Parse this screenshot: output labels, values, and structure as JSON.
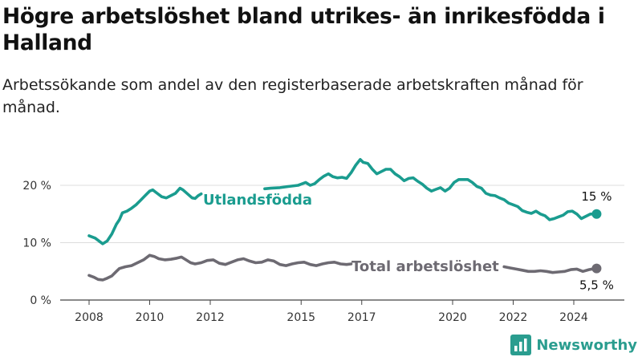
{
  "title": "Högre arbetslöshet bland utrikes- än inrikesfödda i Halland",
  "subtitle": "Arbetssökande som andel av den registerbaserade arbetskraften månad för månad.",
  "brand": {
    "name": "Newsworthy",
    "icon": "bar-chart-icon",
    "color": "#2a9d8f"
  },
  "chart_data": {
    "type": "line",
    "title": "Högre arbetslöshet bland utrikes- än inrikesfödda i Halland",
    "subtitle": "Arbetssökande som andel av den registerbaserade arbetskraften månad för månad.",
    "xlim": [
      2007.9,
      2025
    ],
    "ylim": [
      0,
      27
    ],
    "x_ticks": [
      {
        "value": 2008,
        "label": "2008"
      },
      {
        "value": 2010,
        "label": "2010"
      },
      {
        "value": 2012,
        "label": "2012"
      },
      {
        "value": 2015,
        "label": "2015"
      },
      {
        "value": 2017,
        "label": "2017"
      },
      {
        "value": 2020,
        "label": "2020"
      },
      {
        "value": 2022,
        "label": "2022"
      },
      {
        "value": 2024,
        "label": "2024"
      }
    ],
    "y_ticks": [
      {
        "value": 0,
        "label": "0 %"
      },
      {
        "value": 10,
        "label": "10 %"
      },
      {
        "value": 20,
        "label": "20 %"
      }
    ],
    "grid": true,
    "series": [
      {
        "name": "Utlandsfödda",
        "color": "#1a9c8f",
        "end_label": "15 %",
        "points": [
          [
            2008.0,
            11.2
          ],
          [
            2008.2,
            10.8
          ],
          [
            2008.35,
            10.2
          ],
          [
            2008.45,
            9.8
          ],
          [
            2008.6,
            10.3
          ],
          [
            2008.75,
            11.5
          ],
          [
            2008.9,
            13.2
          ],
          [
            2009.0,
            14.0
          ],
          [
            2009.1,
            15.2
          ],
          [
            2009.25,
            15.5
          ],
          [
            2009.4,
            16.0
          ],
          [
            2009.55,
            16.6
          ],
          [
            2009.7,
            17.4
          ],
          [
            2009.85,
            18.2
          ],
          [
            2010.0,
            19.0
          ],
          [
            2010.1,
            19.2
          ],
          [
            2010.25,
            18.6
          ],
          [
            2010.4,
            18.0
          ],
          [
            2010.55,
            17.8
          ],
          [
            2010.7,
            18.2
          ],
          [
            2010.85,
            18.6
          ],
          [
            2011.0,
            19.5
          ],
          [
            2011.1,
            19.2
          ],
          [
            2011.25,
            18.5
          ],
          [
            2011.4,
            17.8
          ],
          [
            2011.5,
            17.7
          ],
          [
            2011.6,
            18.2
          ],
          [
            2011.7,
            18.5
          ]
        ],
        "points_b": [
          [
            2013.8,
            19.4
          ],
          [
            2014.0,
            19.5
          ],
          [
            2014.3,
            19.6
          ],
          [
            2014.6,
            19.8
          ],
          [
            2014.9,
            20.0
          ],
          [
            2015.0,
            20.2
          ],
          [
            2015.15,
            20.5
          ],
          [
            2015.3,
            20.0
          ],
          [
            2015.45,
            20.3
          ],
          [
            2015.6,
            21.0
          ],
          [
            2015.75,
            21.6
          ],
          [
            2015.9,
            22.0
          ],
          [
            2016.05,
            21.5
          ],
          [
            2016.2,
            21.3
          ],
          [
            2016.35,
            21.4
          ],
          [
            2016.5,
            21.2
          ],
          [
            2016.65,
            22.2
          ],
          [
            2016.8,
            23.5
          ],
          [
            2016.95,
            24.5
          ],
          [
            2017.05,
            24.0
          ],
          [
            2017.2,
            23.8
          ],
          [
            2017.35,
            22.8
          ],
          [
            2017.5,
            22.0
          ],
          [
            2017.65,
            22.4
          ],
          [
            2017.8,
            22.8
          ],
          [
            2017.95,
            22.8
          ],
          [
            2018.1,
            22.0
          ],
          [
            2018.25,
            21.5
          ],
          [
            2018.4,
            20.8
          ],
          [
            2018.55,
            21.2
          ],
          [
            2018.7,
            21.3
          ],
          [
            2018.85,
            20.7
          ],
          [
            2019.0,
            20.2
          ],
          [
            2019.15,
            19.5
          ],
          [
            2019.3,
            19.0
          ],
          [
            2019.45,
            19.3
          ],
          [
            2019.6,
            19.6
          ],
          [
            2019.75,
            19.0
          ],
          [
            2019.9,
            19.5
          ],
          [
            2020.05,
            20.5
          ],
          [
            2020.2,
            21.0
          ],
          [
            2020.35,
            21.0
          ],
          [
            2020.5,
            21.0
          ],
          [
            2020.65,
            20.5
          ],
          [
            2020.8,
            19.8
          ],
          [
            2020.95,
            19.5
          ],
          [
            2021.1,
            18.6
          ],
          [
            2021.25,
            18.3
          ],
          [
            2021.4,
            18.2
          ],
          [
            2021.55,
            17.8
          ],
          [
            2021.7,
            17.5
          ],
          [
            2021.85,
            16.9
          ],
          [
            2022.0,
            16.6
          ],
          [
            2022.15,
            16.3
          ],
          [
            2022.3,
            15.6
          ],
          [
            2022.45,
            15.3
          ],
          [
            2022.6,
            15.1
          ],
          [
            2022.75,
            15.5
          ],
          [
            2022.9,
            15.0
          ],
          [
            2023.05,
            14.7
          ],
          [
            2023.2,
            14.0
          ],
          [
            2023.35,
            14.2
          ],
          [
            2023.5,
            14.5
          ],
          [
            2023.65,
            14.8
          ],
          [
            2023.8,
            15.4
          ],
          [
            2023.95,
            15.5
          ],
          [
            2024.1,
            15.0
          ],
          [
            2024.25,
            14.2
          ],
          [
            2024.4,
            14.6
          ],
          [
            2024.55,
            15.0
          ],
          [
            2024.7,
            15.0
          ]
        ]
      },
      {
        "name": "Total arbetslöshet",
        "color": "#6d6a72",
        "end_label": "5,5 %",
        "points": [
          [
            2008.0,
            4.3
          ],
          [
            2008.15,
            4.0
          ],
          [
            2008.3,
            3.6
          ],
          [
            2008.45,
            3.5
          ],
          [
            2008.6,
            3.8
          ],
          [
            2008.75,
            4.2
          ],
          [
            2008.9,
            5.0
          ],
          [
            2009.0,
            5.5
          ],
          [
            2009.2,
            5.8
          ],
          [
            2009.4,
            6.0
          ],
          [
            2009.6,
            6.5
          ],
          [
            2009.8,
            7.0
          ],
          [
            2010.0,
            7.8
          ],
          [
            2010.15,
            7.6
          ],
          [
            2010.3,
            7.2
          ],
          [
            2010.5,
            7.0
          ],
          [
            2010.7,
            7.1
          ],
          [
            2010.9,
            7.3
          ],
          [
            2011.05,
            7.5
          ],
          [
            2011.2,
            7.0
          ],
          [
            2011.35,
            6.5
          ],
          [
            2011.5,
            6.3
          ],
          [
            2011.7,
            6.5
          ],
          [
            2011.9,
            6.9
          ],
          [
            2012.1,
            7.0
          ],
          [
            2012.3,
            6.4
          ],
          [
            2012.5,
            6.2
          ],
          [
            2012.7,
            6.6
          ],
          [
            2012.9,
            7.0
          ],
          [
            2013.1,
            7.2
          ],
          [
            2013.3,
            6.8
          ],
          [
            2013.5,
            6.5
          ],
          [
            2013.7,
            6.6
          ],
          [
            2013.9,
            7.0
          ],
          [
            2014.1,
            6.8
          ],
          [
            2014.3,
            6.2
          ],
          [
            2014.5,
            6.0
          ],
          [
            2014.7,
            6.3
          ],
          [
            2014.9,
            6.5
          ],
          [
            2015.1,
            6.6
          ],
          [
            2015.3,
            6.2
          ],
          [
            2015.5,
            6.0
          ],
          [
            2015.7,
            6.3
          ],
          [
            2015.9,
            6.5
          ],
          [
            2016.1,
            6.6
          ],
          [
            2016.3,
            6.3
          ],
          [
            2016.5,
            6.2
          ],
          [
            2016.65,
            6.3
          ]
        ],
        "points_b": [
          [
            2021.7,
            5.8
          ],
          [
            2021.9,
            5.6
          ],
          [
            2022.1,
            5.4
          ],
          [
            2022.3,
            5.2
          ],
          [
            2022.5,
            5.0
          ],
          [
            2022.7,
            5.0
          ],
          [
            2022.9,
            5.1
          ],
          [
            2023.1,
            5.0
          ],
          [
            2023.3,
            4.8
          ],
          [
            2023.5,
            4.9
          ],
          [
            2023.7,
            5.0
          ],
          [
            2023.9,
            5.3
          ],
          [
            2024.1,
            5.4
          ],
          [
            2024.3,
            5.0
          ],
          [
            2024.5,
            5.3
          ],
          [
            2024.7,
            5.5
          ]
        ]
      }
    ]
  }
}
